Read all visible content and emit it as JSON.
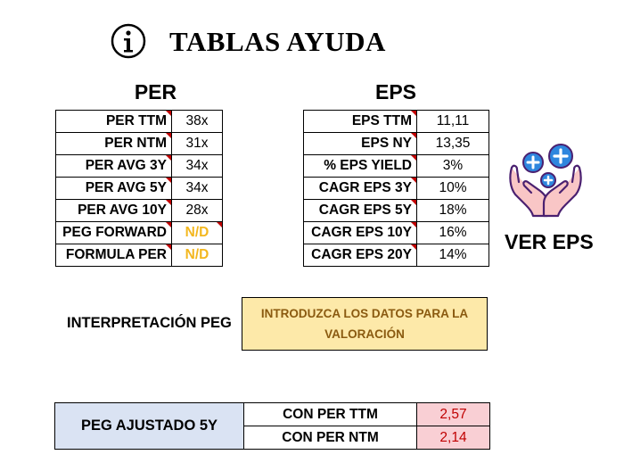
{
  "header": {
    "title": "TABLAS AYUDA",
    "icon": "info-icon"
  },
  "per": {
    "title": "PER",
    "rows": [
      {
        "label": "PER TTM",
        "value": "38x"
      },
      {
        "label": "PER NTM",
        "value": "31x"
      },
      {
        "label": "PER AVG 3Y",
        "value": "34x"
      },
      {
        "label": "PER AVG 5Y",
        "value": "34x"
      },
      {
        "label": "PER AVG 10Y",
        "value": "28x"
      },
      {
        "label": "PEG FORWARD",
        "value": "N/D"
      },
      {
        "label": "FORMULA PER",
        "value": "N/D"
      }
    ]
  },
  "eps": {
    "title": "EPS",
    "rows": [
      {
        "label": "EPS TTM",
        "value": "11,11"
      },
      {
        "label": "EPS NY",
        "value": "13,35"
      },
      {
        "label": "% EPS YIELD",
        "value": "3%"
      },
      {
        "label": "CAGR EPS 3Y",
        "value": "10%"
      },
      {
        "label": "CAGR EPS 5Y",
        "value": "18%"
      },
      {
        "label": "CAGR EPS 10Y",
        "value": "16%"
      },
      {
        "label": "CAGR EPS 20Y",
        "value": "14%"
      }
    ]
  },
  "ver_eps": {
    "label": "VER EPS",
    "icon": "hands-plus-icon"
  },
  "interpretacion": {
    "label": "INTERPRETACIÓN PEG",
    "message": "INTRODUZCA LOS DATOS PARA LA VALORACIÓN"
  },
  "peg_ajustado": {
    "label": "PEG AJUSTADO 5Y",
    "rows": [
      {
        "label": "CON PER TTM",
        "value": "2,57"
      },
      {
        "label": "CON PER NTM",
        "value": "2,14"
      }
    ]
  },
  "colors": {
    "na_text": "#f3b71f",
    "interp_bg": "#fde9a9",
    "interp_text": "#8a5a10",
    "peg_label_bg": "#dae3f3",
    "peg_value_bg": "#f9cfd4",
    "peg_value_text": "#c00000",
    "comment_flag": "#c00000"
  }
}
